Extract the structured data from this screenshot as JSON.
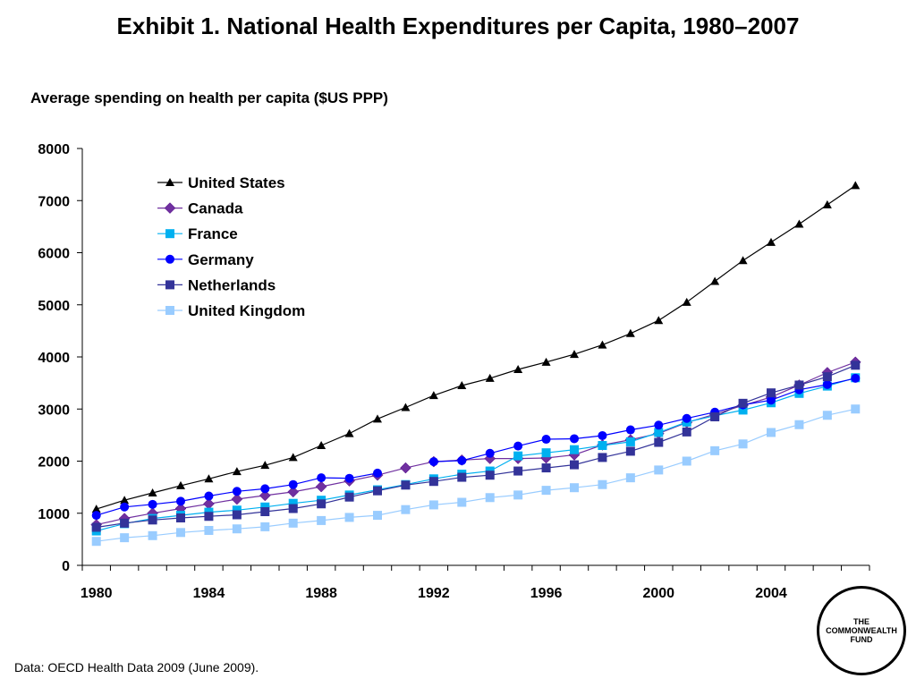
{
  "title": "Exhibit 1. National Health Expenditures per Capita, 1980–2007",
  "subtitle": "Average spending on health per capita ($US PPP)",
  "source": "Data: OECD Health Data 2009 (June 2009).",
  "logo": {
    "line1": "THE",
    "line2": "COMMONWEALTH",
    "line3": "FUND"
  },
  "chart_data": {
    "type": "line",
    "x": [
      1980,
      1981,
      1982,
      1983,
      1984,
      1985,
      1986,
      1987,
      1988,
      1989,
      1990,
      1991,
      1992,
      1993,
      1994,
      1995,
      1996,
      1997,
      1998,
      1999,
      2000,
      2001,
      2002,
      2003,
      2004,
      2005,
      2006,
      2007
    ],
    "x_tick_labels": [
      "1980",
      "1984",
      "1988",
      "1992",
      "1996",
      "2000",
      "2004"
    ],
    "y_tick_labels": [
      "0",
      "1000",
      "2000",
      "3000",
      "4000",
      "5000",
      "6000",
      "7000",
      "8000"
    ],
    "ylim": [
      0,
      8000
    ],
    "grid": false,
    "legend_position": "top-left",
    "series": [
      {
        "name": "United States",
        "color": "#000000",
        "marker": "triangle",
        "values": [
          1080,
          1250,
          1390,
          1530,
          1660,
          1800,
          1920,
          2070,
          2300,
          2530,
          2810,
          3030,
          3260,
          3450,
          3590,
          3760,
          3900,
          4050,
          4230,
          4450,
          4700,
          5050,
          5450,
          5850,
          6200,
          6550,
          6920,
          7290
        ]
      },
      {
        "name": "Canada",
        "color": "#7030a0",
        "marker": "diamond",
        "values": [
          780,
          900,
          1000,
          1090,
          1180,
          1270,
          1340,
          1410,
          1510,
          1620,
          1730,
          1870,
          1990,
          2020,
          2050,
          2050,
          2060,
          2120,
          2310,
          2410,
          2530,
          2740,
          2900,
          3070,
          3230,
          3460,
          3700,
          3900
        ]
      },
      {
        "name": "France",
        "color": "#00b0f0",
        "marker": "square",
        "values": [
          660,
          800,
          900,
          960,
          1020,
          1060,
          1120,
          1190,
          1250,
          1350,
          1450,
          1550,
          1660,
          1750,
          1810,
          2100,
          2160,
          2220,
          2300,
          2370,
          2550,
          2750,
          2870,
          2980,
          3120,
          3300,
          3440,
          3600
        ]
      },
      {
        "name": "Germany",
        "color": "#0000ff",
        "marker": "circle",
        "values": [
          960,
          1120,
          1170,
          1230,
          1330,
          1420,
          1470,
          1550,
          1680,
          1670,
          1770,
          null,
          1990,
          2010,
          2150,
          2290,
          2420,
          2430,
          2490,
          2600,
          2690,
          2820,
          2940,
          3080,
          3170,
          3370,
          3470,
          3590
        ]
      },
      {
        "name": "Netherlands",
        "color": "#333399",
        "marker": "square",
        "values": [
          730,
          810,
          870,
          910,
          940,
          970,
          1030,
          1090,
          1180,
          1310,
          1430,
          1540,
          1610,
          1690,
          1730,
          1810,
          1870,
          1930,
          2070,
          2190,
          2360,
          2560,
          2850,
          3110,
          3310,
          3460,
          3620,
          3840
        ]
      },
      {
        "name": "United Kingdom",
        "color": "#99ccff",
        "marker": "square",
        "values": [
          460,
          530,
          570,
          630,
          670,
          700,
          740,
          810,
          860,
          920,
          960,
          1070,
          1160,
          1210,
          1300,
          1350,
          1440,
          1490,
          1550,
          1680,
          1830,
          2000,
          2200,
          2330,
          2550,
          2700,
          2880,
          3000
        ]
      }
    ]
  }
}
